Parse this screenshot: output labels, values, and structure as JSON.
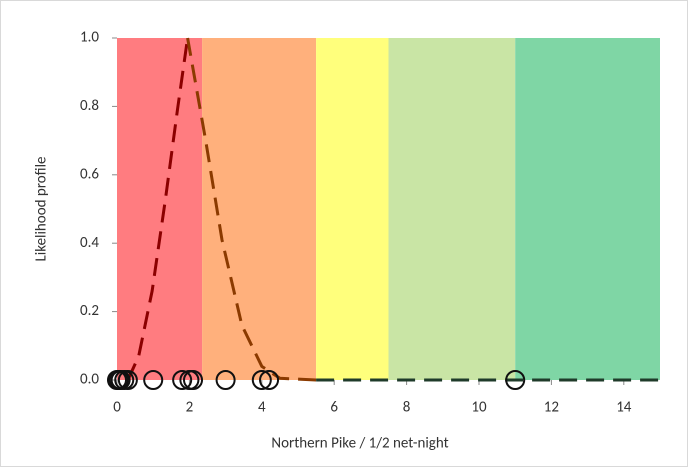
{
  "chart_data": {
    "type": "line",
    "xlabel": "Northern Pike / 1/2 net-night",
    "ylabel": "Likelihood profile",
    "xlim": [
      0,
      15
    ],
    "ylim": [
      0,
      1
    ],
    "xticks": [
      0,
      2,
      4,
      6,
      8,
      10,
      12,
      14
    ],
    "yticks": [
      {
        "value": 0,
        "label": "0.0"
      },
      0.2,
      0.4,
      0.6,
      0.8,
      {
        "value": 1,
        "label": "1.0"
      }
    ],
    "bands": [
      {
        "from": 0,
        "to": 2.35,
        "color": "#ff7c80"
      },
      {
        "from": 2.35,
        "to": 5.5,
        "color": "#ffb07c"
      },
      {
        "from": 5.5,
        "to": 7.5,
        "color": "#ffff7c"
      },
      {
        "from": 7.5,
        "to": 11,
        "color": "#c9e5a5"
      },
      {
        "from": 11,
        "to": 15,
        "color": "#7fd6a5"
      }
    ],
    "series": [
      {
        "color": "#8b0000",
        "x": [
          0.3,
          0.6,
          0.97,
          1.34,
          1.67,
          1.95
        ],
        "values": [
          0,
          0.07,
          0.26,
          0.53,
          0.79,
          1
        ]
      },
      {
        "color": "#8b3a00",
        "x": [
          1.95,
          2.2,
          2.45,
          2.9,
          3.45,
          4,
          4.5,
          5.5
        ],
        "values": [
          1,
          0.85,
          0.7,
          0.41,
          0.16,
          0.04,
          0.005,
          0
        ]
      },
      {
        "color": "#1f3b2a",
        "x": [
          5.5,
          15
        ],
        "values": [
          0,
          0
        ]
      }
    ],
    "points": {
      "x": [
        0,
        0.05,
        0.1,
        0.2,
        0.3,
        1,
        1.8,
        2,
        2.1,
        3,
        4,
        4.2,
        11
      ],
      "values": [
        0,
        0,
        0,
        0,
        0,
        0,
        0,
        0,
        0,
        0,
        0,
        0,
        0
      ]
    }
  }
}
